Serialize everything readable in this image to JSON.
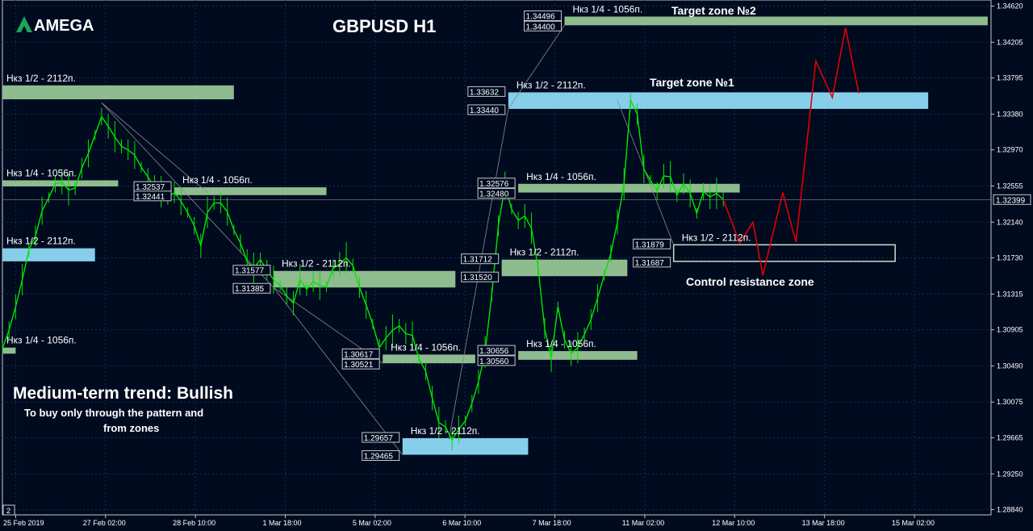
{
  "chart_data": {
    "type": "line",
    "title": "GBPUSD H1",
    "symbol": "GBPUSD",
    "timeframe": "H1",
    "ylim": [
      1.2878,
      1.3469
    ],
    "grid": true,
    "y_ticks": [
      "1.34620",
      "1.34205",
      "1.33795",
      "1.33380",
      "1.32970",
      "1.32555",
      "1.32140",
      "1.31730",
      "1.31315",
      "1.30905",
      "1.30490",
      "1.30075",
      "1.29665",
      "1.29250",
      "1.28840"
    ],
    "x_ticks": [
      "25 Feb 2019",
      "27 Feb 02:00",
      "28 Feb 10:00",
      "1 Mar 18:00",
      "5 Mar 02:00",
      "6 Mar 10:00",
      "7 Mar 18:00",
      "11 Mar 02:00",
      "12 Mar 10:00",
      "13 Mar 18:00",
      "15 Mar 02:00"
    ],
    "current_price": "1.32399",
    "price_series": {
      "name": "GBPUSD",
      "color": "#00e600",
      "x": [
        0,
        2,
        4,
        6,
        8,
        10,
        12,
        14,
        16,
        18,
        20,
        22,
        24,
        26,
        28,
        30,
        32,
        34,
        36,
        38,
        40,
        42,
        44,
        46,
        48,
        50,
        52,
        54,
        56,
        58,
        60,
        62,
        64,
        66,
        68,
        70,
        72,
        74,
        76,
        78,
        80,
        82,
        84,
        86,
        88,
        90,
        92,
        94,
        96,
        98,
        100,
        102,
        104,
        106,
        108,
        110,
        112,
        114,
        116,
        118,
        120,
        122,
        124,
        126,
        128,
        130,
        132,
        134,
        136,
        138,
        140,
        142,
        144,
        146,
        148,
        150,
        152,
        154,
        156,
        158,
        160,
        162,
        164,
        166,
        168,
        170,
        172,
        174,
        176,
        178,
        180,
        182,
        184,
        186,
        188,
        190,
        192,
        194,
        196,
        198,
        200,
        202,
        204,
        206,
        208,
        210,
        212,
        214,
        216,
        218
      ],
      "y": [
        1.3069,
        1.309,
        1.3117,
        1.3148,
        1.3182,
        1.3198,
        1.3227,
        1.3242,
        1.3258,
        1.326,
        1.3251,
        1.3253,
        1.3276,
        1.3293,
        1.3314,
        1.3335,
        1.3324,
        1.3312,
        1.3301,
        1.3297,
        1.3291,
        1.3277,
        1.3266,
        1.3254,
        1.3249,
        1.3242,
        1.3248,
        1.3238,
        1.3225,
        1.321,
        1.3187,
        1.3225,
        1.3236,
        1.3236,
        1.3226,
        1.3205,
        1.319,
        1.3169,
        1.3161,
        1.3171,
        1.3159,
        1.3148,
        1.3141,
        1.3129,
        1.3121,
        1.3148,
        1.3137,
        1.3146,
        1.3141,
        1.314,
        1.3161,
        1.3166,
        1.3173,
        1.3164,
        1.3139,
        1.3119,
        1.3097,
        1.307,
        1.3081,
        1.309,
        1.3095,
        1.3086,
        1.3084,
        1.3057,
        1.3043,
        1.3012,
        1.2984,
        1.2979,
        1.2964,
        1.2976,
        1.2986,
        1.3006,
        1.3031,
        1.3065,
        1.3131,
        1.321,
        1.3256,
        1.3229,
        1.3216,
        1.3221,
        1.3207,
        1.3162,
        1.3092,
        1.3058,
        1.3117,
        1.3079,
        1.3063,
        1.307,
        1.3085,
        1.3102,
        1.3127,
        1.3153,
        1.3178,
        1.3214,
        1.3258,
        1.3354,
        1.3338,
        1.3275,
        1.3262,
        1.325,
        1.3267,
        1.3266,
        1.3245,
        1.3258,
        1.3247,
        1.3224,
        1.3249,
        1.3243,
        1.3247,
        1.324
      ]
    },
    "forecast_path": {
      "color": "#e00000",
      "x": [
        218,
        223,
        227,
        230,
        236,
        240,
        246,
        251,
        255,
        259
      ],
      "y": [
        1.324,
        1.319,
        1.3214,
        1.3153,
        1.3248,
        1.3191,
        1.3399,
        1.3357,
        1.3437,
        1.3362
      ]
    },
    "zones": [
      {
        "label": "Нкз 1/2 - 2112п.",
        "top": 1.3371,
        "bottom": 1.3355,
        "x_start": 0,
        "x_end": 70,
        "color": "#8fbc8f"
      },
      {
        "label": "Нкз 1/4 - 1056п.",
        "top": 1.3262,
        "bottom": 1.3255,
        "x_start": 0,
        "x_end": 35,
        "color": "#8fbc8f"
      },
      {
        "label": "Нкз 1/2 - 2112п.",
        "top": 1.3184,
        "bottom": 1.3169,
        "x_start": 0,
        "x_end": 28,
        "color": "#87ceeb"
      },
      {
        "label": "Нкз 1/4 - 1056п.",
        "top": 1.307,
        "bottom": 1.3063,
        "x_start": 0,
        "x_end": 4,
        "color": "#8fbc8f"
      },
      {
        "label": "Нкз 1/4 - 1056п.",
        "top": 1.3254,
        "bottom": 1.3245,
        "x_start": 52,
        "x_end": 98,
        "color": "#8fbc8f",
        "price_top": "1.32537",
        "price_bottom": "1.32441"
      },
      {
        "label": "Нкз 1/2 - 2112п.",
        "top": 1.3158,
        "bottom": 1.3139,
        "x_start": 82,
        "x_end": 137,
        "color": "#8fbc8f",
        "price_top": "1.31577",
        "price_bottom": "1.31385"
      },
      {
        "label": "Нкз 1/4 - 1056п.",
        "top": 1.3062,
        "bottom": 1.3052,
        "x_start": 115,
        "x_end": 143,
        "color": "#8fbc8f",
        "price_top": "1.30617",
        "price_bottom": "1.30521"
      },
      {
        "label": "Нкз 1/2 - 2112п.",
        "top": 1.2966,
        "bottom": 1.2947,
        "x_start": 121,
        "x_end": 159,
        "color": "#87ceeb",
        "price_top": "1.29657",
        "price_bottom": "1.29465"
      },
      {
        "label": "Нкз 1/4 - 1056п.",
        "top": 1.345,
        "bottom": 1.344,
        "x_start": 170,
        "x_end": 298,
        "color": "#8fbc8f",
        "price_top": "1.34496",
        "price_bottom": "1.34400"
      },
      {
        "label": "Нкз 1/2 - 2112п.",
        "top": 1.3363,
        "bottom": 1.3344,
        "x_start": 153,
        "x_end": 280,
        "color": "#87ceeb",
        "price_top": "1.33632",
        "price_bottom": "1.33440"
      },
      {
        "label": "Нкз 1/4 - 1056п.",
        "top": 1.3258,
        "bottom": 1.3248,
        "x_start": 156,
        "x_end": 223,
        "color": "#8fbc8f",
        "price_top": "1.32576",
        "price_bottom": "1.32480"
      },
      {
        "label": "Нкз 1/2 - 2112п.",
        "top": 1.3171,
        "bottom": 1.3152,
        "x_start": 151,
        "x_end": 189,
        "color": "#8fbc8f",
        "price_top": "1.31712",
        "price_bottom": "1.31520"
      },
      {
        "label": "Нкз 1/4 - 1056п.",
        "top": 1.3066,
        "bottom": 1.3056,
        "x_start": 156,
        "x_end": 192,
        "color": "#8fbc8f",
        "price_top": "1.30656",
        "price_bottom": "1.30560"
      },
      {
        "label": "Нкз 1/2 - 2112п.",
        "top": 1.3188,
        "bottom": 1.3169,
        "x_start": 203,
        "x_end": 270,
        "color": "none",
        "outline": "#c8e0c8",
        "price_top": "1.31879",
        "price_bottom": "1.31687"
      }
    ],
    "annotations": {
      "target_zone_1": "Target zone №1",
      "target_zone_2": "Target zone №2",
      "control_zone": "Control resistance zone",
      "trend_title": "Medium-term trend: Bullish",
      "trend_note_1": "To buy only through the pattern  and",
      "trend_note_2": "from zones"
    }
  },
  "logo": {
    "text": "AMEGA",
    "color": "#ffffff"
  },
  "colors": {
    "background": "#000b20",
    "price_line": "#00e600",
    "forecast": "#e00000",
    "zone_green": "#8fbc8f",
    "zone_blue": "#87ceeb",
    "grid": "#1c2b4a"
  },
  "footer": {
    "zoom_marker": "2"
  }
}
